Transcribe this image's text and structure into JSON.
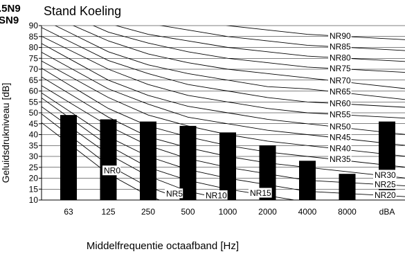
{
  "corner_label": ".5N9\nSN9",
  "chart_data": {
    "type": "bar",
    "title": "Stand Koeling",
    "xlabel": "Middelfrequentie octaafband [Hz]",
    "ylabel": "Geluidsdrukniveau [dB]",
    "categories": [
      "63",
      "125",
      "250",
      "500",
      "1000",
      "2000",
      "4000",
      "8000",
      "dBA"
    ],
    "values": [
      49,
      47,
      46,
      44,
      41,
      35,
      28,
      22,
      46
    ],
    "ylim": [
      10,
      90
    ],
    "yticks": [
      "10",
      "15",
      "20",
      "25",
      "30",
      "35",
      "40",
      "45",
      "50",
      "55",
      "60",
      "65",
      "70",
      "75",
      "80",
      "85",
      "90"
    ],
    "grid": "horizontal",
    "bar_color": "#000000",
    "nr_curves": [
      {
        "label": "NR0",
        "values": [
          36,
          22,
          12,
          5,
          0,
          -3.5,
          -6,
          -8
        ]
      },
      {
        "label": "NR5",
        "values": [
          40,
          26,
          16,
          9.5,
          5,
          1.5,
          -1,
          -3
        ]
      },
      {
        "label": "NR10",
        "values": [
          44,
          31,
          21,
          14,
          10,
          7,
          4,
          2
        ]
      },
      {
        "label": "NR15",
        "values": [
          48,
          35,
          25,
          19,
          15,
          12,
          9,
          7
        ]
      },
      {
        "label": "NR20",
        "values": [
          51,
          39,
          30,
          24,
          20,
          17,
          14,
          13
        ]
      },
      {
        "label": "NR25",
        "values": [
          55,
          44,
          35,
          29,
          25,
          22,
          19,
          18
        ]
      },
      {
        "label": "NR30",
        "values": [
          59,
          48,
          39,
          34,
          30,
          27,
          25,
          23
        ]
      },
      {
        "label": "NR35",
        "values": [
          63,
          52,
          44,
          39,
          35,
          32,
          30,
          28
        ]
      },
      {
        "label": "NR40",
        "values": [
          67,
          57,
          49,
          44,
          40,
          37,
          35,
          33
        ]
      },
      {
        "label": "NR45",
        "values": [
          71,
          61,
          54,
          48,
          45,
          42,
          40,
          38
        ]
      },
      {
        "label": "NR50",
        "values": [
          75,
          65,
          58,
          53,
          50,
          47,
          45,
          43
        ]
      },
      {
        "label": "NR55",
        "values": [
          79,
          70,
          63,
          58,
          55,
          52,
          50,
          49
        ]
      },
      {
        "label": "NR60",
        "values": [
          83,
          74,
          68,
          63,
          60,
          57,
          55,
          54
        ]
      },
      {
        "label": "NR65",
        "values": [
          87,
          78,
          72,
          68,
          65,
          62,
          61,
          59
        ]
      },
      {
        "label": "NR70",
        "values": [
          91,
          83,
          77,
          73,
          70,
          68,
          66,
          64
        ]
      },
      {
        "label": "NR75",
        "values": [
          95,
          87,
          82,
          78,
          75,
          73,
          71,
          70
        ]
      },
      {
        "label": "NR80",
        "values": [
          99,
          91,
          86,
          83,
          80,
          78,
          76,
          75
        ]
      },
      {
        "label": "NR85",
        "values": [
          103,
          96,
          91,
          88,
          85,
          83,
          81,
          80
        ]
      },
      {
        "label": "NR90",
        "values": [
          107,
          100,
          95,
          93,
          90,
          88,
          86,
          85
        ]
      }
    ]
  }
}
